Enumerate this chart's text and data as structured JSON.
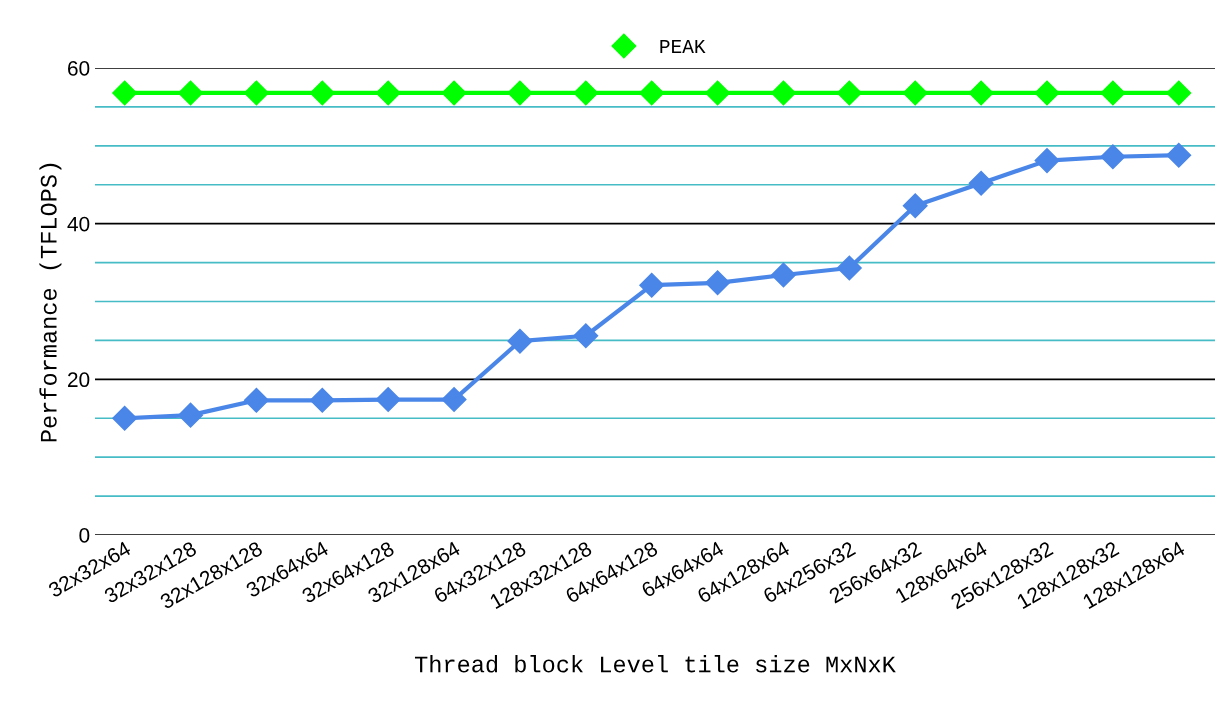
{
  "chart_data": {
    "type": "line",
    "xlabel": "Thread block Level tile size MxNxK",
    "ylabel": "Performance (TFLOPS)",
    "categories": [
      "32x32x64",
      "32x32x128",
      "32x128x128",
      "32x64x64",
      "32x64x128",
      "32x128x64",
      "64x32x128",
      "128x32x128",
      "64x64x128",
      "64x64x64",
      "64x128x64",
      "64x256x32",
      "256x64x32",
      "128x64x64",
      "256x128x32",
      "128x128x32",
      "128x128x64"
    ],
    "series": [
      {
        "color": "#4a86e8",
        "values": [
          15.0,
          15.4,
          17.3,
          17.3,
          17.4,
          17.4,
          24.9,
          25.6,
          32.1,
          32.4,
          33.4,
          34.3,
          42.3,
          45.2,
          48.1,
          48.6,
          48.8
        ]
      },
      {
        "name": "PEAK",
        "color": "#00ff00",
        "values": [
          56.8,
          56.8,
          56.8,
          56.8,
          56.8,
          56.8,
          56.8,
          56.8,
          56.8,
          56.8,
          56.8,
          56.8,
          56.8,
          56.8,
          56.8,
          56.8,
          56.8
        ]
      }
    ],
    "ylim": [
      0,
      60
    ],
    "yticks": [
      0,
      {
        "value": 5,
        "label": null
      },
      {
        "value": 10,
        "label": null
      },
      {
        "value": 15,
        "label": null
      },
      20,
      {
        "value": 25,
        "label": null
      },
      {
        "value": 30,
        "label": null
      },
      {
        "value": 35,
        "label": null
      },
      40,
      {
        "value": 45,
        "label": null
      },
      {
        "value": 50,
        "label": null
      },
      {
        "value": 55,
        "label": null
      },
      60
    ],
    "grid": "y",
    "legend": "top",
    "marker": "diamond",
    "line_style": "solid"
  }
}
